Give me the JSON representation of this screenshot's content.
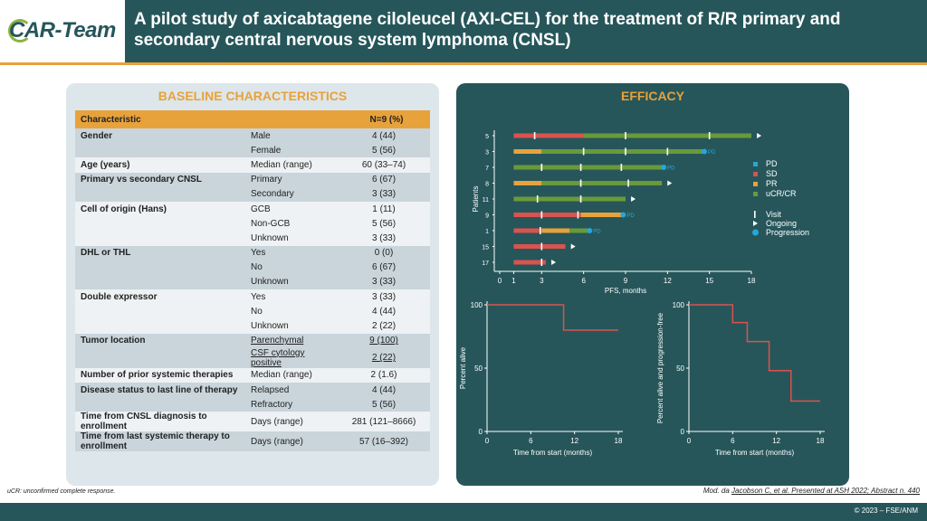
{
  "header": {
    "logo": "CAR-Team",
    "title": "A pilot study of axicabtagene ciloleucel (AXI-CEL) for the treatment of R/R primary and secondary central nervous system lymphoma (CNSL)"
  },
  "baseline": {
    "title": "BASELINE CHARACTERISTICS",
    "col_char": "Characteristic",
    "col_n": "N=9 (%)",
    "rows": [
      {
        "c": "Gender",
        "s": "Male",
        "v": "4 (44)"
      },
      {
        "c": "",
        "s": "Female",
        "v": "5 (56)"
      },
      {
        "c": "Age (years)",
        "s": "Median (range)",
        "v": "60 (33–74)"
      },
      {
        "c": "Primary vs secondary CNSL",
        "s": "Primary",
        "v": "6 (67)"
      },
      {
        "c": "",
        "s": "Secondary",
        "v": "3 (33)"
      },
      {
        "c": "Cell of origin (Hans)",
        "s": "GCB",
        "v": "1 (11)"
      },
      {
        "c": "",
        "s": "Non-GCB",
        "v": "5 (56)"
      },
      {
        "c": "",
        "s": "Unknown",
        "v": "3 (33)"
      },
      {
        "c": "DHL or THL",
        "s": "Yes",
        "v": "0 (0)"
      },
      {
        "c": "",
        "s": "No",
        "v": "6 (67)"
      },
      {
        "c": "",
        "s": "Unknown",
        "v": "3 (33)"
      },
      {
        "c": "Double expressor",
        "s": "Yes",
        "v": "3 (33)"
      },
      {
        "c": "",
        "s": "No",
        "v": "4 (44)"
      },
      {
        "c": "",
        "s": "Unknown",
        "v": "2 (22)"
      },
      {
        "c": "Tumor location",
        "s": "Parenchymal",
        "v": "9 (100)"
      },
      {
        "c": "",
        "s": "CSF cytology positive",
        "v": "2 (22)"
      },
      {
        "c": "Number of prior systemic therapies",
        "s": "Median (range)",
        "v": "2 (1.6)"
      },
      {
        "c": "Disease status to last line of therapy",
        "s": "Relapsed",
        "v": "4 (44)"
      },
      {
        "c": "",
        "s": "Refractory",
        "v": "5 (56)"
      },
      {
        "c": "Time from CNSL diagnosis to enrollment",
        "s": "Days (range)",
        "v": "281 (121–8666)"
      },
      {
        "c": "Time from last systemic therapy to enrollment",
        "s": "Days (range)",
        "v": "57 (16–392)"
      }
    ]
  },
  "efficacy": {
    "title": "EFFICACY",
    "swimmer": {
      "ylabel": "Patients",
      "xlabel": "PFS, months",
      "xticks": [
        0,
        1,
        3,
        6,
        9,
        12,
        15,
        18
      ],
      "legend": {
        "pd": "PD",
        "sd": "SD",
        "pr": "PR",
        "ucr": "uCR/CR",
        "visit": "Visit",
        "ongoing": "Ongoing",
        "progression": "Progression"
      },
      "colors": {
        "pd": "#d9534f",
        "sd": "#e8a23b",
        "ucr": "#6a9a3a",
        "progression": "#27a6d8"
      },
      "patients": [
        {
          "id": "5",
          "segs": [
            [
              "pd",
              1,
              6
            ],
            [
              "ucr",
              6,
              18
            ]
          ],
          "visits": [
            2.5,
            9,
            15
          ],
          "end": "ongoing",
          "endAt": 18.2
        },
        {
          "id": "3",
          "segs": [
            [
              "sd",
              1,
              3
            ],
            [
              "ucr",
              3,
              14.5
            ]
          ],
          "visits": [
            6,
            9,
            12
          ],
          "end": "pd",
          "endAt": 14.5
        },
        {
          "id": "7",
          "segs": [
            [
              "ucr",
              1,
              11.6
            ]
          ],
          "visits": [
            3,
            5.8,
            8.7
          ],
          "end": "pd",
          "endAt": 11.6
        },
        {
          "id": "8",
          "segs": [
            [
              "sd",
              1,
              3
            ],
            [
              "ucr",
              3,
              11.6
            ]
          ],
          "visits": [
            5.8,
            9.2
          ],
          "end": "ongoing",
          "endAt": 11.8
        },
        {
          "id": "11",
          "segs": [
            [
              "ucr",
              1,
              9
            ]
          ],
          "visits": [
            2.7,
            5.8
          ],
          "end": "ongoing",
          "endAt": 9.2
        },
        {
          "id": "9",
          "segs": [
            [
              "pd",
              1,
              5.8
            ],
            [
              "sd",
              5.8,
              8.7
            ]
          ],
          "visits": [
            3,
            5.6
          ],
          "end": "pd",
          "endAt": 8.7
        },
        {
          "id": "1",
          "segs": [
            [
              "pd",
              1,
              3
            ],
            [
              "sd",
              3,
              5
            ],
            [
              "ucr",
              5,
              6.3
            ]
          ],
          "visits": [
            2.9
          ],
          "end": "pd",
          "endAt": 6.3
        },
        {
          "id": "15",
          "segs": [
            [
              "pd",
              1,
              4.7
            ]
          ],
          "visits": [
            3
          ],
          "end": "ongoing",
          "endAt": 4.9
        },
        {
          "id": "17",
          "segs": [
            [
              "pd",
              1,
              3.3
            ]
          ],
          "visits": [
            3
          ],
          "end": "ongoing",
          "endAt": 3.5
        }
      ]
    },
    "os": {
      "ylabel": "Percent alive",
      "xlabel": "Time from start (months)",
      "xticks": [
        0,
        6,
        12,
        18
      ],
      "yticks": [
        0,
        50,
        100
      ],
      "points": [
        [
          0,
          100
        ],
        [
          10.5,
          100
        ],
        [
          10.5,
          80
        ],
        [
          18,
          80
        ]
      ]
    },
    "pfs": {
      "ylabel": "Percent alive and progression-free",
      "xlabel": "Time from start (months)",
      "xticks": [
        0,
        6,
        12,
        18
      ],
      "yticks": [
        0,
        50,
        100
      ],
      "points": [
        [
          0,
          100
        ],
        [
          6,
          100
        ],
        [
          6,
          86
        ],
        [
          8,
          86
        ],
        [
          8,
          71
        ],
        [
          11,
          71
        ],
        [
          11,
          48
        ],
        [
          14,
          48
        ],
        [
          14,
          24
        ],
        [
          18,
          24
        ]
      ]
    }
  },
  "footer": {
    "footnote": "uCR: unconfirmed complete response.",
    "ref_prefix": "Mod. da",
    "ref_link": "Jacobson C, et al. Presented at ASH 2022; Abstract n. 440",
    "copyright": "© 2023 – FSE/ANM"
  }
}
